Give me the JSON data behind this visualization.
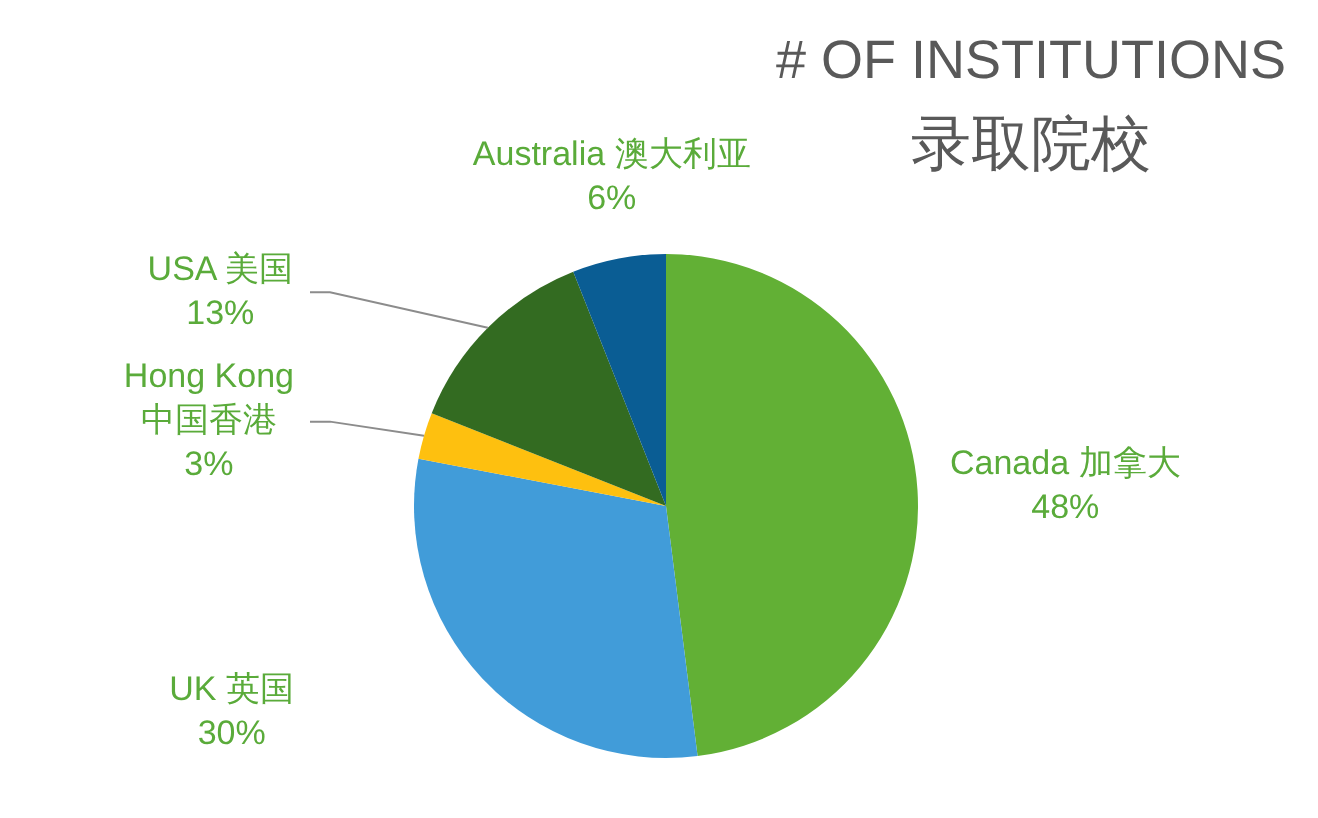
{
  "chart_data": {
    "type": "pie",
    "title": "# OF INSTITUTIONS",
    "subtitle": "录取院校",
    "categories": [
      "Canada 加拿大",
      "UK 英国",
      "Hong Kong 中国香港",
      "USA 美国",
      "Australia 澳大利亚"
    ],
    "values": [
      48,
      30,
      3,
      13,
      6
    ],
    "value_labels": [
      "48%",
      "30%",
      "3%",
      "13%",
      "6%"
    ],
    "colors": [
      "#62b035",
      "#419cd9",
      "#fec00f",
      "#336b21",
      "#0a5d94"
    ],
    "legend": false
  }
}
